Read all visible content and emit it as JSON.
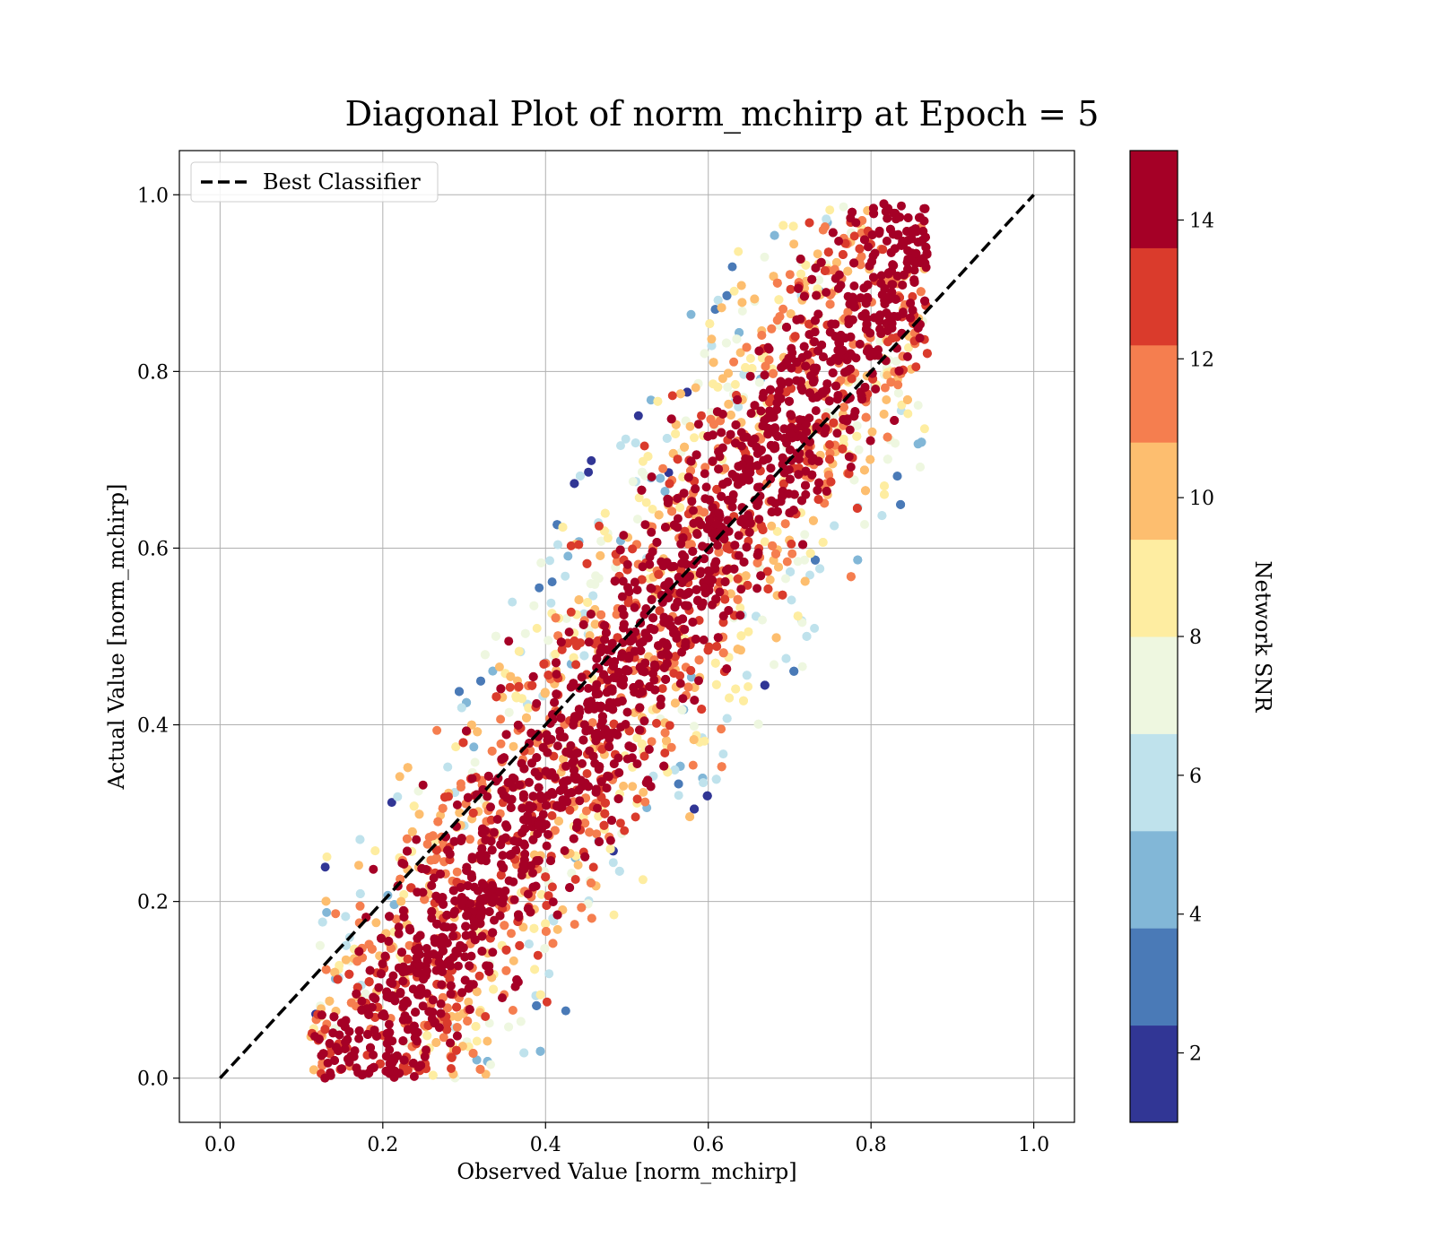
{
  "chart_data": {
    "type": "scatter",
    "title": "Diagonal Plot of norm_mchirp at Epoch = 5",
    "xlabel": "Observed Value [norm_mchirp]",
    "ylabel": "Actual Value [norm_mchirp]",
    "xlim": [
      -0.05,
      1.05
    ],
    "ylim": [
      -0.05,
      1.05
    ],
    "xticks": [
      "0.0",
      "0.2",
      "0.4",
      "0.6",
      "0.8",
      "1.0"
    ],
    "yticks": [
      "0.0",
      "0.2",
      "0.4",
      "0.6",
      "0.8",
      "1.0"
    ],
    "grid": true,
    "legend": {
      "placement": "top-left",
      "entries": [
        "Best Classifier"
      ]
    },
    "reference_line": {
      "name": "Best Classifier",
      "x": [
        0.0,
        1.0
      ],
      "y": [
        0.0,
        1.0
      ],
      "style": "dashed",
      "color": "#000000"
    },
    "scatter": {
      "description_of_distribution": "band along the diagonal, x offset from y by roughly ±0.25; high-SNR points concentrated near diagonal, low-SNR points at edges",
      "point_count_estimate": 6000,
      "band_center_offset": 0.0,
      "band_half_width": 0.22,
      "x_range": [
        0.11,
        0.87
      ],
      "y_range": [
        0.0,
        0.99
      ]
    },
    "colorbar": {
      "label": "Network SNR",
      "range": [
        1,
        15
      ],
      "ticks": [
        "2",
        "4",
        "6",
        "8",
        "10",
        "12",
        "14"
      ],
      "tick_values": [
        2,
        4,
        6,
        8,
        10,
        12,
        14
      ],
      "levels": [
        1,
        2.4,
        3.8,
        5.2,
        6.6,
        8,
        9.4,
        10.8,
        12.2,
        13.6,
        15
      ],
      "colors": [
        "#313695",
        "#4575b4",
        "#74add1",
        "#abd9e9",
        "#e0f3f8",
        "#fee090",
        "#fdae61",
        "#f46d43",
        "#d73027",
        "#a50026"
      ],
      "color_bands": [
        "#313695",
        "#4a7ab7",
        "#82b7d7",
        "#bfe2ec",
        "#eef7e0",
        "#feeda1",
        "#fdbe6f",
        "#f57e4f",
        "#da3b2c",
        "#a50026"
      ]
    }
  }
}
